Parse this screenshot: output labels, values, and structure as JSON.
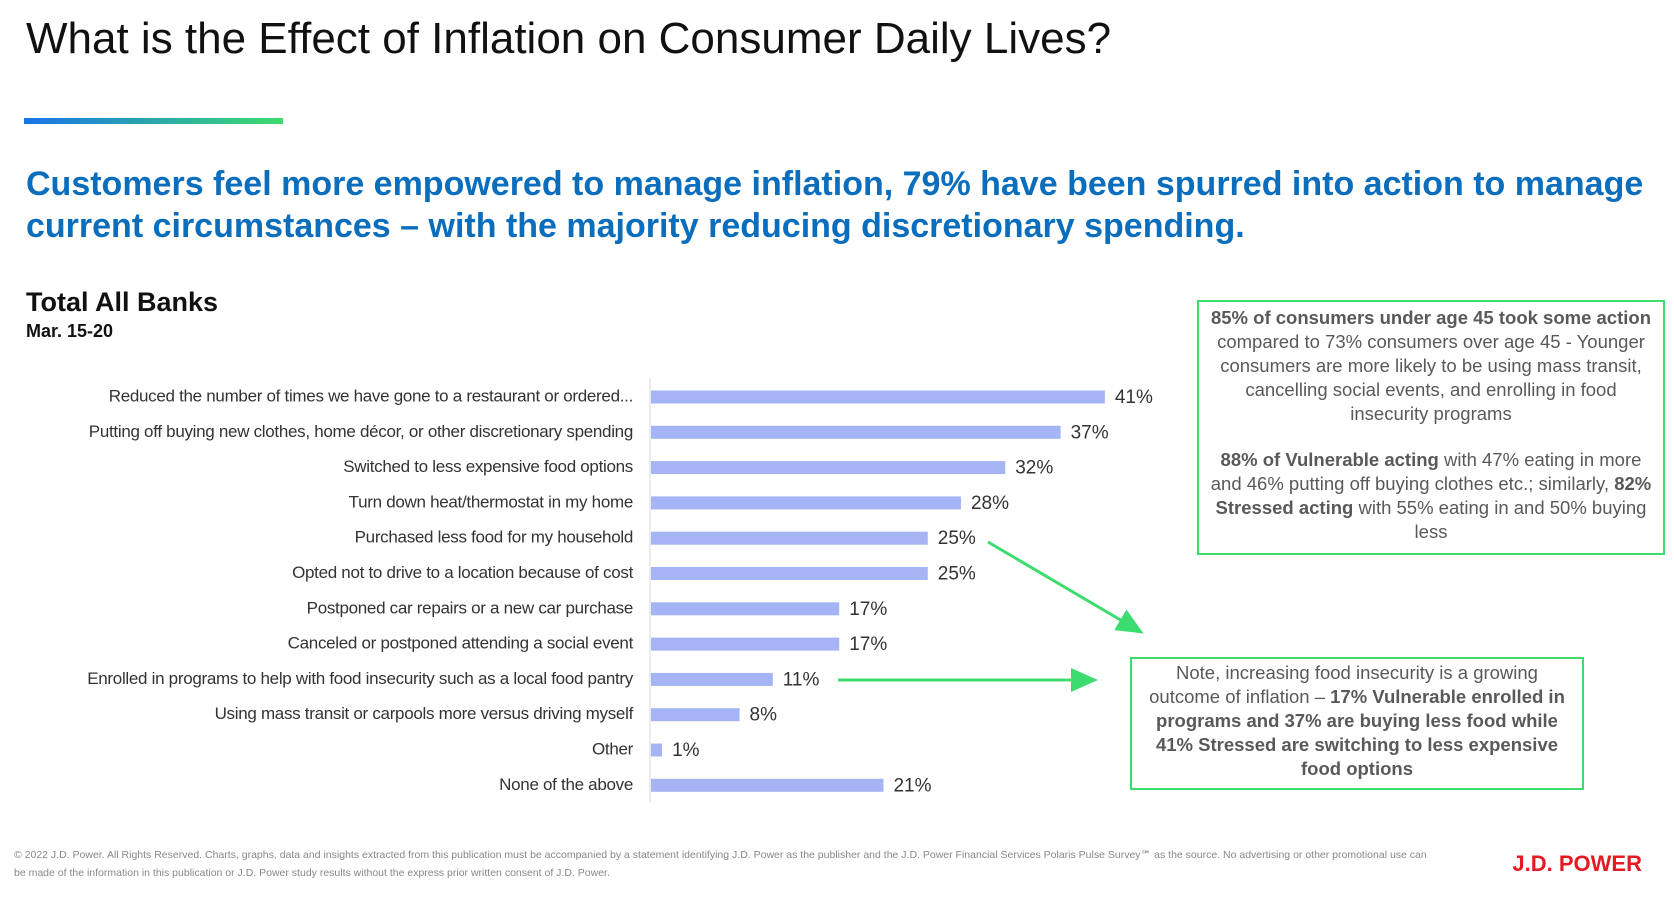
{
  "header": {
    "title": "What is the Effect of Inflation on Consumer Daily Lives?",
    "subtitle": "Customers feel more empowered to manage inflation, 79% have been spurred into action to manage current circumstances – with the majority reducing discretionary spending."
  },
  "chart_data": {
    "type": "bar",
    "orientation": "horizontal",
    "title": "Total All Banks",
    "subtitle": "Mar. 15-20",
    "color": "#a4b4f4",
    "categories": [
      "Reduced the number of times we have gone to a restaurant or ordered...",
      "Putting off buying new clothes, home décor, or other discretionary spending",
      "Switched to less expensive food options",
      "Turn down heat/thermostat in my home",
      "Purchased less food for my household",
      "Opted not to drive to a location because of cost",
      "Postponed car repairs or a new car purchase",
      "Canceled or postponed attending a social event",
      "Enrolled in programs to help with food insecurity such as a local food pantry",
      "Using mass transit or carpools more versus driving myself",
      "Other",
      "None of the above"
    ],
    "values": [
      41,
      37,
      32,
      28,
      25,
      25,
      17,
      17,
      11,
      8,
      1,
      21
    ],
    "value_labels": [
      "41%",
      "37%",
      "32%",
      "28%",
      "25%",
      "25%",
      "17%",
      "17%",
      "11%",
      "8%",
      "1%",
      "21%"
    ]
  },
  "callouts": [
    {
      "paragraphs": [
        [
          {
            "text": "85% of consumers under age 45 took some action",
            "bold": true
          },
          {
            "text": " compared to 73% consumers over age 45 - Younger consumers are more likely to be using mass transit, cancelling social events, and enrolling in food insecurity programs",
            "bold": false
          }
        ],
        [
          {
            "text": "88% of Vulnerable acting",
            "bold": true
          },
          {
            "text": " with 47% eating in more and 46% putting off buying clothes etc.; similarly, ",
            "bold": false
          },
          {
            "text": "82% Stressed acting",
            "bold": true
          },
          {
            "text": " with 55% eating in and 50% buying less",
            "bold": false
          }
        ]
      ]
    },
    {
      "paragraphs": [
        [
          {
            "text": "Note, increasing food insecurity is a growing outcome of inflation – ",
            "bold": false
          },
          {
            "text": "17% Vulnerable enrolled in programs and 37% are buying less food while 41% Stressed are switching to less expensive food options",
            "bold": true
          }
        ]
      ]
    }
  ],
  "footer": {
    "text": "© 2022 J.D. Power. All Rights Reserved. Charts, graphs, data and insights extracted from this publication must be accompanied by a statement identifying J.D. Power as the publisher and the J.D. Power Financial Services Polaris Pulse Survey℠ as the source. No advertising or other promotional use can be made of the information in this publication or J.D. Power study results without the express prior written consent of J.D. Power.",
    "logo": "J.D. POWER"
  }
}
